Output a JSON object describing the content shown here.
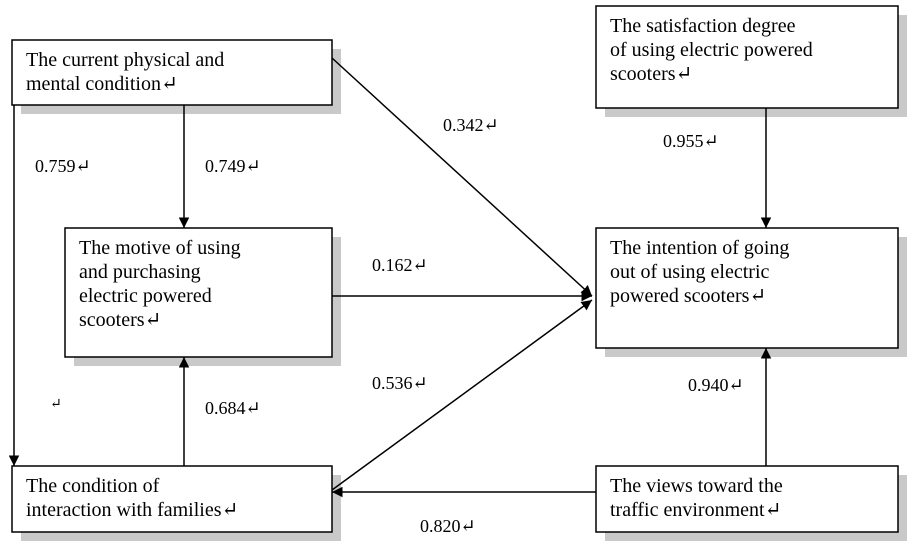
{
  "nodes": [
    {
      "lines": [
        "The current physical and",
        "mental condition↵"
      ]
    },
    {
      "lines": [
        "The motive of using",
        "and purchasing",
        "electric powered",
        "scooters↵"
      ]
    },
    {
      "lines": [
        "The condition of",
        "interaction with families↵"
      ]
    },
    {
      "lines": [
        "The satisfaction degree",
        "of using electric powered",
        "scooters↵"
      ]
    },
    {
      "lines": [
        "The intention of going",
        "out of using electric",
        "powered scooters↵"
      ]
    },
    {
      "lines": [
        "The views toward the",
        "traffic environment↵"
      ]
    }
  ],
  "edges": [
    {
      "label": "0.342↵"
    },
    {
      "label": "0.759↵"
    },
    {
      "label": "0.749↵"
    },
    {
      "label": "0.162↵"
    },
    {
      "label": "0.684↵"
    },
    {
      "label": "0.536↵"
    },
    {
      "label": "0.820↵"
    },
    {
      "label": "0.955↵"
    },
    {
      "label": "0.940↵"
    }
  ],
  "stray_mark": "↵"
}
